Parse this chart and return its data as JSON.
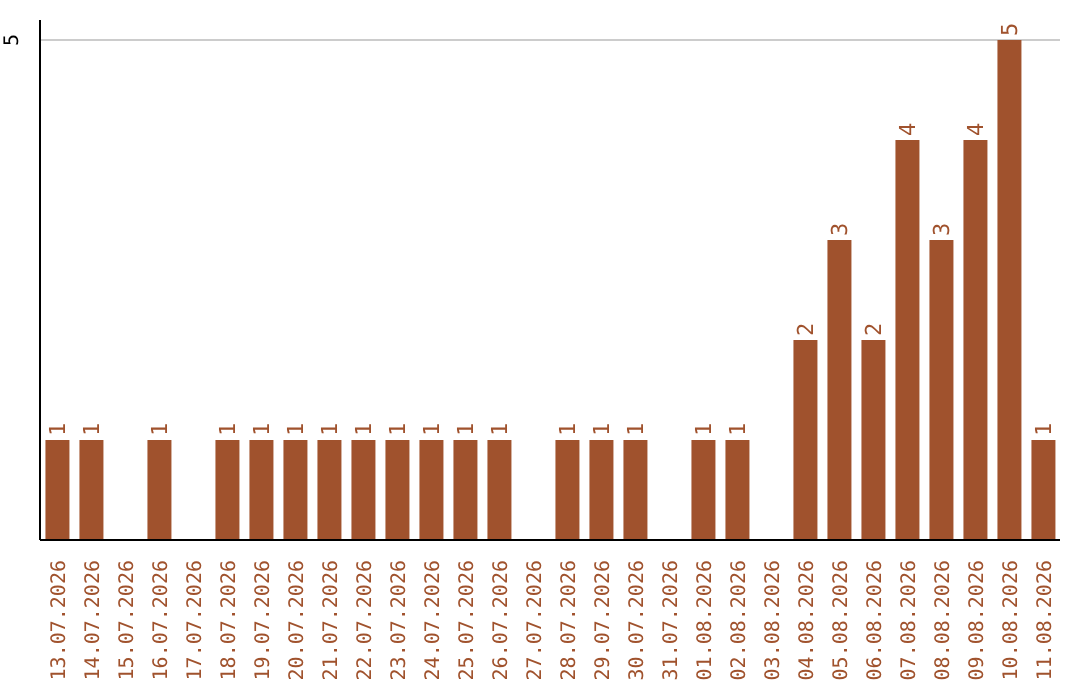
{
  "chart_data": {
    "type": "bar",
    "categories": [
      "13.07.2026",
      "14.07.2026",
      "15.07.2026",
      "16.07.2026",
      "17.07.2026",
      "18.07.2026",
      "19.07.2026",
      "20.07.2026",
      "21.07.2026",
      "22.07.2026",
      "23.07.2026",
      "24.07.2026",
      "25.07.2026",
      "26.07.2026",
      "27.07.2026",
      "28.07.2026",
      "29.07.2026",
      "30.07.2026",
      "31.07.2026",
      "01.08.2026",
      "02.08.2026",
      "03.08.2026",
      "04.08.2026",
      "05.08.2026",
      "06.08.2026",
      "07.08.2026",
      "08.08.2026",
      "09.08.2026",
      "10.08.2026",
      "11.08.2026"
    ],
    "values": [
      1,
      1,
      null,
      1,
      null,
      1,
      1,
      1,
      1,
      1,
      1,
      1,
      1,
      1,
      null,
      1,
      1,
      1,
      null,
      1,
      1,
      null,
      2,
      3,
      2,
      4,
      3,
      4,
      5,
      1
    ],
    "color": "#a0522d",
    "ylim": [
      0,
      5.2
    ],
    "yticks": [
      5
    ],
    "grid": "y",
    "data_labels": true
  }
}
